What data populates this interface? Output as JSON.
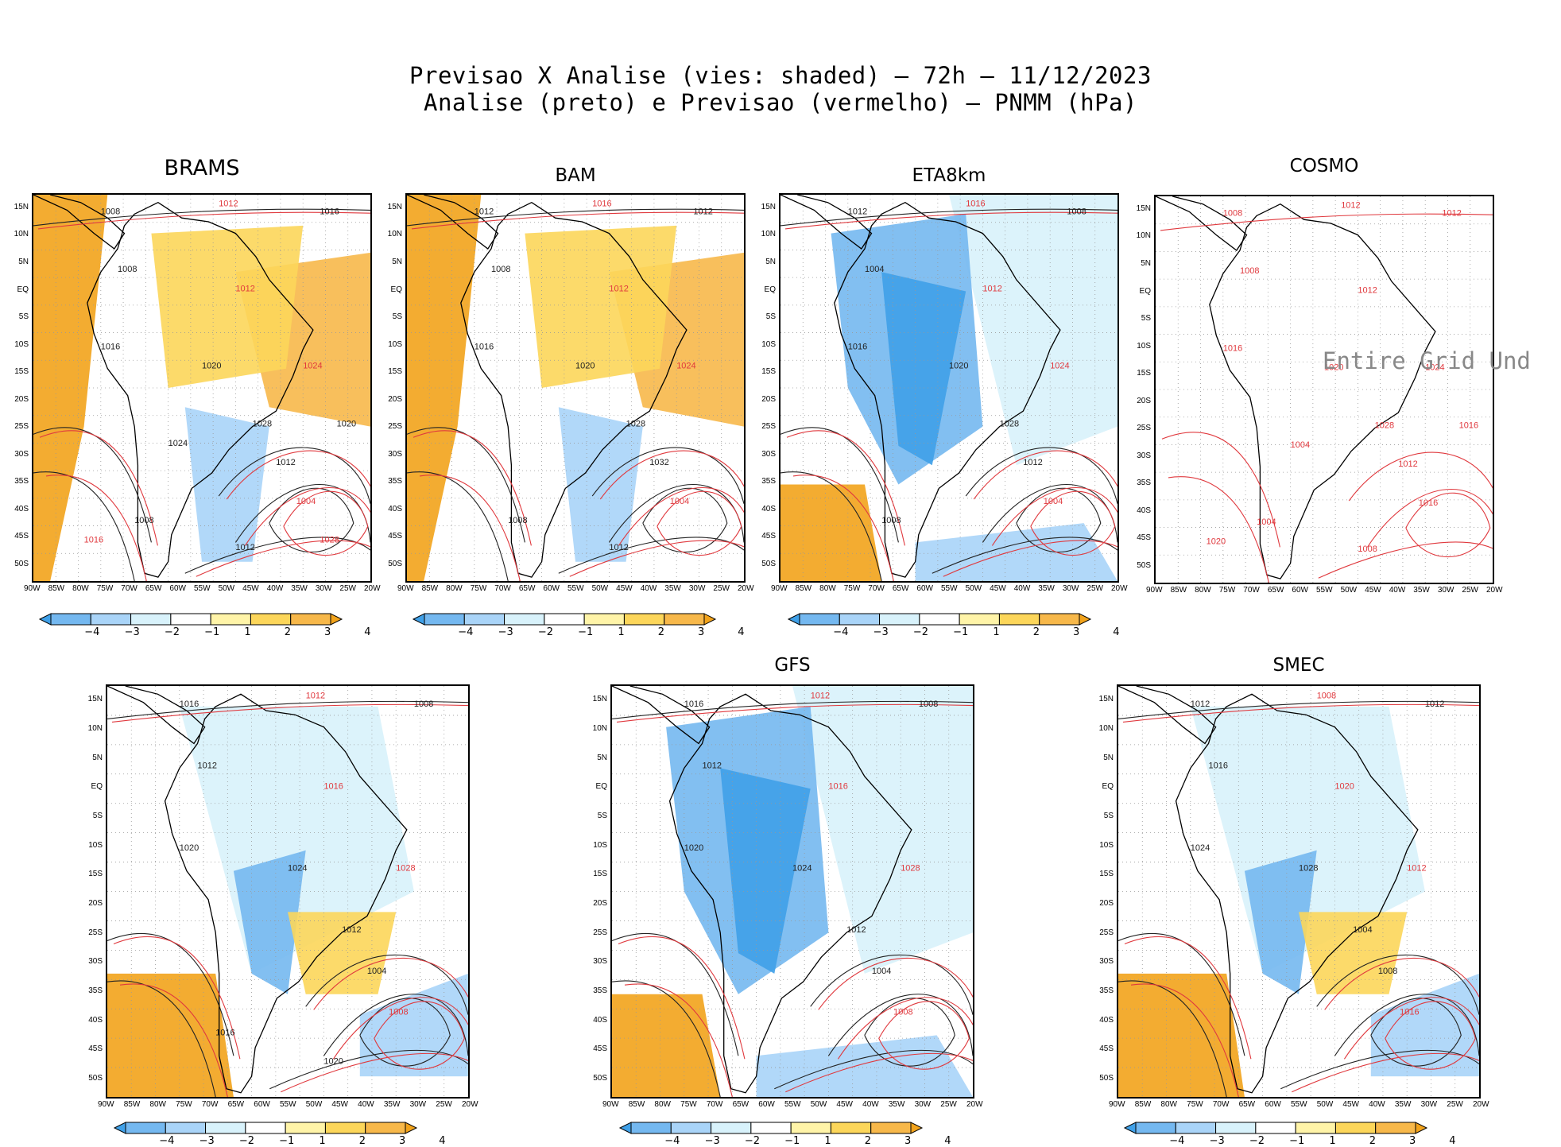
{
  "figure": {
    "title_line1": "Previsao X Analise (vies: shaded) — 72h — 11/12/2023",
    "title_line2": "Analise (preto) e Previsao (vermelho) — PNMM (hPa)"
  },
  "axes": {
    "lat_labels": [
      "15N",
      "10N",
      "5N",
      "EQ",
      "5S",
      "10S",
      "15S",
      "20S",
      "25S",
      "30S",
      "35S",
      "40S",
      "45S",
      "50S"
    ],
    "lon_labels": [
      "90W",
      "85W",
      "80W",
      "75W",
      "70W",
      "65W",
      "60W",
      "55W",
      "50W",
      "45W",
      "40W",
      "35W",
      "30W",
      "25W",
      "20W"
    ]
  },
  "colorbar": {
    "labels": [
      "−4",
      "−3",
      "−2",
      "−1",
      "1",
      "2",
      "3",
      "4"
    ],
    "colors": [
      "#3fa0e8",
      "#74b8f0",
      "#a9d4f8",
      "#d8f2fb",
      "#ffffff",
      "#fff4a8",
      "#fcd65a",
      "#f7b84a",
      "#f2a31b"
    ]
  },
  "panels": [
    {
      "id": "brams",
      "name": "BRAMS",
      "bias": "warm",
      "undefined": false,
      "contours": [
        "1008",
        "1012",
        "1016",
        "1008",
        "1012",
        "1016",
        "1020",
        "1024",
        "1028",
        "1012",
        "1004",
        "1008",
        "1012",
        "1016",
        "1020",
        "1024",
        "1028"
      ]
    },
    {
      "id": "bam",
      "name": "BAM",
      "bias": "warm",
      "undefined": false,
      "contours": [
        "1012",
        "1016",
        "1012",
        "1008",
        "1012",
        "1016",
        "1020",
        "1024",
        "1028",
        "1032",
        "1004",
        "1008",
        "1012"
      ]
    },
    {
      "id": "eta",
      "name": "ETA8km",
      "bias": "cool",
      "undefined": false,
      "contours": [
        "1012",
        "1016",
        "1008",
        "1004",
        "1012",
        "1016",
        "1020",
        "1024",
        "1028",
        "1012",
        "1004",
        "1008"
      ]
    },
    {
      "id": "cosmo",
      "name": "COSMO",
      "bias": "none",
      "undefined": true,
      "undef_text": "Entire Grid Und",
      "contours": [
        "1008",
        "1012",
        "1012",
        "1008",
        "1012",
        "1016",
        "1020",
        "1024",
        "1028",
        "1012",
        "1016",
        "1004",
        "1008",
        "1020",
        "1016",
        "1004"
      ]
    },
    {
      "id": "m5",
      "name": "",
      "bias": "mixed",
      "undefined": false,
      "contours": [
        "1016",
        "1012",
        "1008",
        "1012",
        "1016",
        "1020",
        "1024",
        "1028",
        "1012",
        "1004",
        "1008",
        "1016",
        "1020"
      ]
    },
    {
      "id": "gfs",
      "name": "GFS",
      "bias": "cool",
      "undefined": false,
      "contours": [
        "1016",
        "1012",
        "1008",
        "1012",
        "1016",
        "1020",
        "1024",
        "1028",
        "1012",
        "1004",
        "1008"
      ]
    },
    {
      "id": "smec",
      "name": "SMEC",
      "bias": "mixed",
      "undefined": false,
      "contours": [
        "1012",
        "1008",
        "1012",
        "1016",
        "1020",
        "1024",
        "1028",
        "1012",
        "1004",
        "1008",
        "1016"
      ]
    }
  ]
}
